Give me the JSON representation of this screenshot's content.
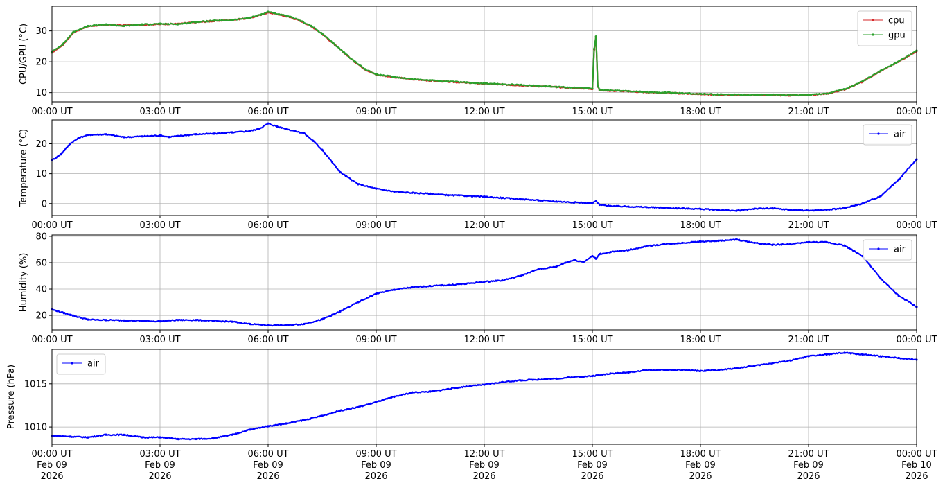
{
  "chart_data": [
    {
      "type": "line",
      "ylabel": "CPU/GPU (°C)",
      "ylim": [
        7,
        38
      ],
      "yticks": [
        10,
        20,
        30
      ],
      "xlim": [
        0,
        24
      ],
      "xticks": [
        "00:00 UT",
        "03:00 UT",
        "06:00 UT",
        "09:00 UT",
        "12:00 UT",
        "15:00 UT",
        "18:00 UT",
        "21:00 UT",
        "00:00 UT"
      ],
      "grid": true,
      "legend": "top-right",
      "series": [
        {
          "name": "cpu",
          "color": "#d62728",
          "x": [
            0,
            0.3,
            0.6,
            1.0,
            1.5,
            2.0,
            2.5,
            3.0,
            3.5,
            4.0,
            4.5,
            5.0,
            5.5,
            5.8,
            6.0,
            6.3,
            6.6,
            6.9,
            7.2,
            7.5,
            7.8,
            8.1,
            8.4,
            8.7,
            9.0,
            9.5,
            10.0,
            10.5,
            11.0,
            11.5,
            12.0,
            12.5,
            13.0,
            13.5,
            14.0,
            14.5,
            14.9,
            15.0,
            15.05,
            15.1,
            15.15,
            15.2,
            15.5,
            16.0,
            16.5,
            17.0,
            17.5,
            18.0,
            18.5,
            19.0,
            19.5,
            20.0,
            20.5,
            21.0,
            21.5,
            22.0,
            22.5,
            23.0,
            23.5,
            24.0
          ],
          "values": [
            23,
            25.5,
            29.5,
            31.5,
            32,
            31.8,
            32,
            32.2,
            32.3,
            32.8,
            33.2,
            33.6,
            34.2,
            35.2,
            36,
            35.3,
            34.5,
            33.2,
            31.5,
            29,
            26,
            23,
            20,
            17.5,
            15.8,
            15,
            14.3,
            13.9,
            13.5,
            13.2,
            12.9,
            12.6,
            12.4,
            12.1,
            11.8,
            11.5,
            11.3,
            11.2,
            24,
            28,
            12,
            10.8,
            10.6,
            10.4,
            10.1,
            9.9,
            9.7,
            9.5,
            9.3,
            9.2,
            9.2,
            9.2,
            9.1,
            9.2,
            9.6,
            11,
            13.5,
            17,
            20,
            23.5
          ]
        },
        {
          "name": "gpu",
          "color": "#2ca02c",
          "x": [
            0,
            0.3,
            0.6,
            1.0,
            1.5,
            2.0,
            2.5,
            3.0,
            3.5,
            4.0,
            4.5,
            5.0,
            5.5,
            5.8,
            6.0,
            6.3,
            6.6,
            6.9,
            7.2,
            7.5,
            7.8,
            8.1,
            8.4,
            8.7,
            9.0,
            9.5,
            10.0,
            10.5,
            11.0,
            11.5,
            12.0,
            12.5,
            13.0,
            13.5,
            14.0,
            14.5,
            14.9,
            15.0,
            15.05,
            15.1,
            15.15,
            15.2,
            15.5,
            16.0,
            16.5,
            17.0,
            17.5,
            18.0,
            18.5,
            19.0,
            19.5,
            20.0,
            20.5,
            21.0,
            21.5,
            22.0,
            22.5,
            23.0,
            23.5,
            24.0
          ],
          "values": [
            23.2,
            25.7,
            29.7,
            31.6,
            32.1,
            31.6,
            32.1,
            32.3,
            32.2,
            32.9,
            33.3,
            33.5,
            34.3,
            35.3,
            36.2,
            35.4,
            34.6,
            33.3,
            31.6,
            29.1,
            26.1,
            23.1,
            20.1,
            17.6,
            15.9,
            15.1,
            14.4,
            14,
            13.6,
            13.3,
            13,
            12.7,
            12.5,
            12.2,
            11.9,
            11.6,
            11.4,
            11.3,
            24.2,
            28.2,
            12.1,
            10.9,
            10.7,
            10.5,
            10.2,
            10,
            9.8,
            9.6,
            9.4,
            9.3,
            9.3,
            9.3,
            9.2,
            9.3,
            9.7,
            11.1,
            13.6,
            17.1,
            20.1,
            23.6
          ]
        }
      ]
    },
    {
      "type": "line",
      "ylabel": "Temperature (°C)",
      "ylim": [
        -4,
        28
      ],
      "yticks": [
        0,
        10,
        20
      ],
      "xlim": [
        0,
        24
      ],
      "xticks": [
        "00:00 UT",
        "03:00 UT",
        "06:00 UT",
        "09:00 UT",
        "12:00 UT",
        "15:00 UT",
        "18:00 UT",
        "21:00 UT",
        "00:00 UT"
      ],
      "grid": true,
      "legend": "top-right",
      "series": [
        {
          "name": "air",
          "color": "#0000ff",
          "x": [
            0,
            0.25,
            0.5,
            0.75,
            1.0,
            1.5,
            2.0,
            2.5,
            3.0,
            3.25,
            3.5,
            4.0,
            4.5,
            5.0,
            5.5,
            5.75,
            6.0,
            6.25,
            6.5,
            7.0,
            7.25,
            7.5,
            8.0,
            8.5,
            9.0,
            9.5,
            10.0,
            10.5,
            11.0,
            11.5,
            12.0,
            12.5,
            13.0,
            13.5,
            14.0,
            14.5,
            15.0,
            15.1,
            15.2,
            15.5,
            16.0,
            16.5,
            17.0,
            17.5,
            18.0,
            18.5,
            19.0,
            19.5,
            20.0,
            20.5,
            21.0,
            21.5,
            22.0,
            22.5,
            23.0,
            23.5,
            24.0
          ],
          "values": [
            14.5,
            16.5,
            20,
            22,
            23,
            23.2,
            22.2,
            22.5,
            22.8,
            22.3,
            22.6,
            23.2,
            23.4,
            23.8,
            24.3,
            25,
            26.8,
            25.8,
            25,
            23.5,
            21,
            18,
            10.5,
            6.5,
            5,
            4,
            3.6,
            3.3,
            2.8,
            2.6,
            2.3,
            1.9,
            1.5,
            1.1,
            0.7,
            0.4,
            0.2,
            0.8,
            -0.4,
            -0.8,
            -1,
            -1.2,
            -1.4,
            -1.6,
            -1.8,
            -2.1,
            -2.4,
            -1.7,
            -1.6,
            -2.1,
            -2.3,
            -2.1,
            -1.5,
            0,
            2.5,
            8,
            14.8
          ]
        }
      ]
    },
    {
      "type": "line",
      "ylabel": "Humidity (%)",
      "ylim": [
        9,
        81
      ],
      "yticks": [
        20,
        40,
        60,
        80
      ],
      "xlim": [
        0,
        24
      ],
      "xticks": [
        "00:00 UT",
        "03:00 UT",
        "06:00 UT",
        "09:00 UT",
        "12:00 UT",
        "15:00 UT",
        "18:00 UT",
        "21:00 UT",
        "00:00 UT"
      ],
      "grid": true,
      "legend": "top-right",
      "series": [
        {
          "name": "air",
          "color": "#0000ff",
          "x": [
            0,
            0.5,
            1.0,
            1.5,
            2.0,
            2.5,
            3.0,
            3.5,
            4.0,
            4.5,
            5.0,
            5.5,
            6.0,
            6.5,
            7.0,
            7.5,
            8.0,
            8.5,
            9.0,
            9.5,
            10.0,
            10.5,
            11.0,
            11.5,
            12.0,
            12.5,
            13.0,
            13.5,
            14.0,
            14.25,
            14.5,
            14.75,
            15.0,
            15.1,
            15.2,
            15.5,
            16.0,
            16.5,
            17.0,
            17.5,
            18.0,
            18.5,
            19.0,
            19.5,
            20.0,
            20.5,
            21.0,
            21.5,
            22.0,
            22.5,
            23.0,
            23.5,
            24.0
          ],
          "values": [
            24.5,
            20.5,
            16.8,
            16.5,
            16.2,
            15.8,
            15.5,
            16.5,
            16.5,
            15.8,
            15.2,
            13.5,
            12.5,
            12.5,
            13.5,
            17,
            23,
            30,
            36.5,
            39.5,
            41.3,
            42.3,
            43,
            44,
            45.5,
            46.5,
            50,
            55,
            57,
            60,
            62,
            60.5,
            65,
            63,
            66.5,
            68,
            69.5,
            72.5,
            74,
            75,
            76,
            76.5,
            77.5,
            75,
            73.5,
            74,
            75.5,
            75.5,
            73,
            65,
            48,
            35,
            26.5
          ]
        }
      ]
    },
    {
      "type": "line",
      "ylabel": "Pressure (hPa)",
      "ylim": [
        1008,
        1019
      ],
      "yticks": [
        1010,
        1015
      ],
      "xlim": [
        0,
        24
      ],
      "xticks": [
        [
          "00:00 UT",
          "Feb 09",
          "2026"
        ],
        [
          "03:00 UT",
          "Feb 09",
          "2026"
        ],
        [
          "06:00 UT",
          "Feb 09",
          "2026"
        ],
        [
          "09:00 UT",
          "Feb 09",
          "2026"
        ],
        [
          "12:00 UT",
          "Feb 09",
          "2026"
        ],
        [
          "15:00 UT",
          "Feb 09",
          "2026"
        ],
        [
          "18:00 UT",
          "Feb 09",
          "2026"
        ],
        [
          "21:00 UT",
          "Feb 09",
          "2026"
        ],
        [
          "00:00 UT",
          "Feb 10",
          "2026"
        ]
      ],
      "grid": true,
      "legend": "top-left",
      "series": [
        {
          "name": "air",
          "color": "#0000ff",
          "x": [
            0,
            0.5,
            1.0,
            1.5,
            2.0,
            2.5,
            3.0,
            3.5,
            4.0,
            4.5,
            5.0,
            5.5,
            6.0,
            6.5,
            7.0,
            7.5,
            8.0,
            8.5,
            9.0,
            9.5,
            10.0,
            10.5,
            11.0,
            11.5,
            12.0,
            12.5,
            13.0,
            13.5,
            14.0,
            14.5,
            15.0,
            15.5,
            16.0,
            16.5,
            17.0,
            17.5,
            18.0,
            18.5,
            19.0,
            19.5,
            20.0,
            20.5,
            21.0,
            21.5,
            22.0,
            22.5,
            23.0,
            23.5,
            24.0
          ],
          "values": [
            1009,
            1008.9,
            1008.8,
            1009.1,
            1009.1,
            1008.8,
            1008.8,
            1008.6,
            1008.6,
            1008.7,
            1009.1,
            1009.7,
            1010.1,
            1010.4,
            1010.8,
            1011.3,
            1011.9,
            1012.3,
            1012.9,
            1013.5,
            1014,
            1014.1,
            1014.4,
            1014.7,
            1014.9,
            1015.2,
            1015.4,
            1015.5,
            1015.6,
            1015.8,
            1015.9,
            1016.2,
            1016.3,
            1016.6,
            1016.6,
            1016.6,
            1016.5,
            1016.6,
            1016.8,
            1017.1,
            1017.4,
            1017.7,
            1018.2,
            1018.4,
            1018.6,
            1018.4,
            1018.2,
            1018.0,
            1017.8
          ]
        }
      ]
    }
  ]
}
